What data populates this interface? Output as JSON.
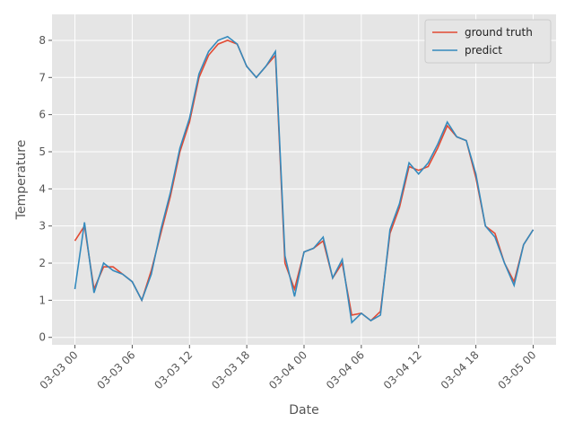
{
  "chart_data": {
    "type": "line",
    "x_label": "Date",
    "y_label": "Temperature",
    "x": [
      "03-03 00",
      "03-03 01",
      "03-03 02",
      "03-03 03",
      "03-03 04",
      "03-03 05",
      "03-03 06",
      "03-03 07",
      "03-03 08",
      "03-03 09",
      "03-03 10",
      "03-03 11",
      "03-03 12",
      "03-03 13",
      "03-03 14",
      "03-03 15",
      "03-03 16",
      "03-03 17",
      "03-03 18",
      "03-03 19",
      "03-03 20",
      "03-03 21",
      "03-03 22",
      "03-03 23",
      "03-04 00",
      "03-04 01",
      "03-04 02",
      "03-04 03",
      "03-04 04",
      "03-04 05",
      "03-04 06",
      "03-04 07",
      "03-04 08",
      "03-04 09",
      "03-04 10",
      "03-04 11",
      "03-04 12",
      "03-04 13",
      "03-04 14",
      "03-04 15",
      "03-04 16",
      "03-04 17",
      "03-04 18",
      "03-04 19",
      "03-04 20",
      "03-04 21",
      "03-04 22",
      "03-04 23",
      "03-05 00"
    ],
    "series": [
      {
        "name": "ground truth",
        "color": "#E24A33",
        "values": [
          2.6,
          3.0,
          1.3,
          1.9,
          1.9,
          1.7,
          1.5,
          1.0,
          1.8,
          2.8,
          3.8,
          5.0,
          5.8,
          7.0,
          7.6,
          7.9,
          8.0,
          7.9,
          7.3,
          7.0,
          7.3,
          7.6,
          2.0,
          1.3,
          2.3,
          2.4,
          2.6,
          1.6,
          2.0,
          0.6,
          0.65,
          0.45,
          0.7,
          2.8,
          3.5,
          4.6,
          4.5,
          4.6,
          5.1,
          5.7,
          5.4,
          5.3,
          4.3,
          3.0,
          2.8,
          2.0,
          1.5,
          2.5,
          2.9
        ]
      },
      {
        "name": "predict",
        "color": "#348ABD",
        "values": [
          1.3,
          3.1,
          1.2,
          2.0,
          1.8,
          1.7,
          1.5,
          1.0,
          1.7,
          2.9,
          3.9,
          5.1,
          5.9,
          7.1,
          7.7,
          8.0,
          8.1,
          7.9,
          7.3,
          7.0,
          7.3,
          7.7,
          2.2,
          1.1,
          2.3,
          2.4,
          2.7,
          1.6,
          2.1,
          0.4,
          0.65,
          0.45,
          0.6,
          2.9,
          3.6,
          4.7,
          4.4,
          4.7,
          5.2,
          5.8,
          5.4,
          5.3,
          4.4,
          3.0,
          2.7,
          2.0,
          1.4,
          2.5,
          2.9
        ]
      }
    ],
    "xticks": [
      "03-03 00",
      "03-03 06",
      "03-03 12",
      "03-03 18",
      "03-04 00",
      "03-04 06",
      "03-04 12",
      "03-04 18",
      "03-05 00"
    ],
    "ylim": [
      -0.2,
      8.7
    ],
    "yticks": [
      0,
      1,
      2,
      3,
      4,
      5,
      6,
      7,
      8
    ],
    "grid": true,
    "legend": "upper right"
  }
}
